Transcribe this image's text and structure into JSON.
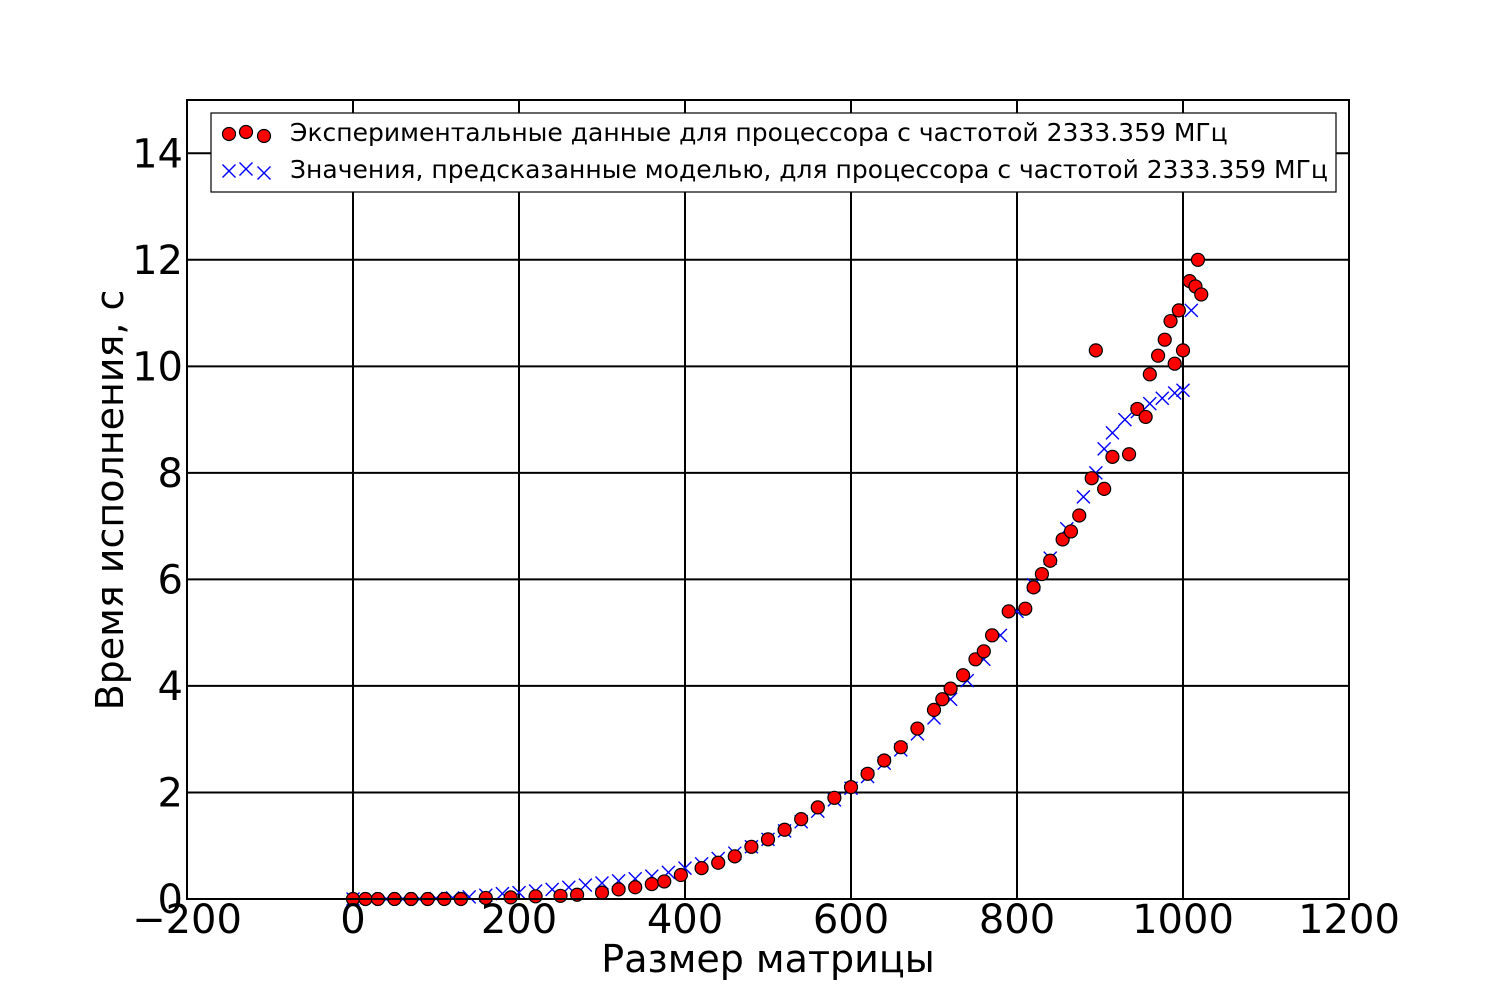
{
  "chart_data": {
    "type": "scatter",
    "title": "",
    "xlabel": "Размер матрицы",
    "ylabel": "Время исполнения, с",
    "xlim": [
      -200,
      1200
    ],
    "ylim": [
      0,
      15
    ],
    "xticks": [
      -200,
      0,
      200,
      400,
      600,
      800,
      1000,
      1200
    ],
    "yticks": [
      0,
      2,
      4,
      6,
      8,
      10,
      12,
      14
    ],
    "xtick_labels": [
      "−200",
      "0",
      "200",
      "400",
      "600",
      "800",
      "1000",
      "1200"
    ],
    "ytick_labels": [
      "0",
      "2",
      "4",
      "6",
      "8",
      "10",
      "12",
      "14"
    ],
    "grid": true,
    "legend_position": "top",
    "series": [
      {
        "name": "Экспериментальные данные для процессора с частотой 2333.359 МГц",
        "marker": "circle",
        "color": "#ff0000",
        "edge_color": "#000000",
        "points": [
          [
            0,
            0.0
          ],
          [
            15,
            0.0
          ],
          [
            30,
            0.0
          ],
          [
            50,
            0.0
          ],
          [
            70,
            0.0
          ],
          [
            90,
            0.0
          ],
          [
            110,
            0.0
          ],
          [
            130,
            0.0
          ],
          [
            160,
            0.02
          ],
          [
            190,
            0.03
          ],
          [
            220,
            0.05
          ],
          [
            250,
            0.06
          ],
          [
            270,
            0.08
          ],
          [
            300,
            0.12
          ],
          [
            320,
            0.18
          ],
          [
            340,
            0.22
          ],
          [
            360,
            0.28
          ],
          [
            375,
            0.33
          ],
          [
            395,
            0.45
          ],
          [
            420,
            0.58
          ],
          [
            440,
            0.68
          ],
          [
            460,
            0.8
          ],
          [
            480,
            0.98
          ],
          [
            500,
            1.12
          ],
          [
            520,
            1.3
          ],
          [
            540,
            1.5
          ],
          [
            560,
            1.72
          ],
          [
            580,
            1.9
          ],
          [
            600,
            2.1
          ],
          [
            620,
            2.35
          ],
          [
            640,
            2.6
          ],
          [
            660,
            2.85
          ],
          [
            680,
            3.2
          ],
          [
            700,
            3.55
          ],
          [
            710,
            3.75
          ],
          [
            720,
            3.95
          ],
          [
            735,
            4.2
          ],
          [
            750,
            4.5
          ],
          [
            760,
            4.65
          ],
          [
            770,
            4.95
          ],
          [
            790,
            5.4
          ],
          [
            810,
            5.45
          ],
          [
            820,
            5.85
          ],
          [
            830,
            6.1
          ],
          [
            840,
            6.35
          ],
          [
            855,
            6.75
          ],
          [
            865,
            6.9
          ],
          [
            875,
            7.2
          ],
          [
            890,
            7.9
          ],
          [
            895,
            10.3
          ],
          [
            905,
            7.7
          ],
          [
            915,
            8.3
          ],
          [
            935,
            8.35
          ],
          [
            945,
            9.2
          ],
          [
            955,
            9.05
          ],
          [
            960,
            9.85
          ],
          [
            970,
            10.2
          ],
          [
            978,
            10.5
          ],
          [
            985,
            10.85
          ],
          [
            990,
            10.05
          ],
          [
            995,
            11.05
          ],
          [
            1000,
            10.3
          ],
          [
            1008,
            11.6
          ],
          [
            1015,
            11.5
          ],
          [
            1018,
            12.0
          ],
          [
            1022,
            11.35
          ]
        ]
      },
      {
        "name": "Значения, предсказанные моделью, для процессора с частотой 2333.359 МГц",
        "marker": "x",
        "color": "#0000ff",
        "points": [
          [
            0,
            0.0
          ],
          [
            20,
            0.0
          ],
          [
            40,
            0.0
          ],
          [
            60,
            0.0
          ],
          [
            80,
            0.0
          ],
          [
            100,
            0.01
          ],
          [
            120,
            0.02
          ],
          [
            140,
            0.04
          ],
          [
            160,
            0.07
          ],
          [
            180,
            0.1
          ],
          [
            200,
            0.12
          ],
          [
            220,
            0.15
          ],
          [
            240,
            0.18
          ],
          [
            260,
            0.22
          ],
          [
            280,
            0.26
          ],
          [
            300,
            0.3
          ],
          [
            320,
            0.34
          ],
          [
            340,
            0.38
          ],
          [
            360,
            0.43
          ],
          [
            380,
            0.5
          ],
          [
            400,
            0.58
          ],
          [
            420,
            0.66
          ],
          [
            440,
            0.76
          ],
          [
            460,
            0.86
          ],
          [
            480,
            0.98
          ],
          [
            500,
            1.12
          ],
          [
            520,
            1.28
          ],
          [
            540,
            1.45
          ],
          [
            560,
            1.65
          ],
          [
            580,
            1.86
          ],
          [
            600,
            2.08
          ],
          [
            620,
            2.3
          ],
          [
            640,
            2.55
          ],
          [
            660,
            2.8
          ],
          [
            680,
            3.1
          ],
          [
            700,
            3.4
          ],
          [
            720,
            3.75
          ],
          [
            740,
            4.1
          ],
          [
            760,
            4.5
          ],
          [
            780,
            4.95
          ],
          [
            800,
            5.4
          ],
          [
            820,
            5.9
          ],
          [
            840,
            6.4
          ],
          [
            860,
            6.95
          ],
          [
            880,
            7.55
          ],
          [
            895,
            8.0
          ],
          [
            905,
            8.45
          ],
          [
            915,
            8.75
          ],
          [
            930,
            9.0
          ],
          [
            945,
            9.15
          ],
          [
            960,
            9.3
          ],
          [
            975,
            9.4
          ],
          [
            990,
            9.5
          ],
          [
            1000,
            9.55
          ],
          [
            1010,
            11.05
          ]
        ]
      }
    ]
  }
}
